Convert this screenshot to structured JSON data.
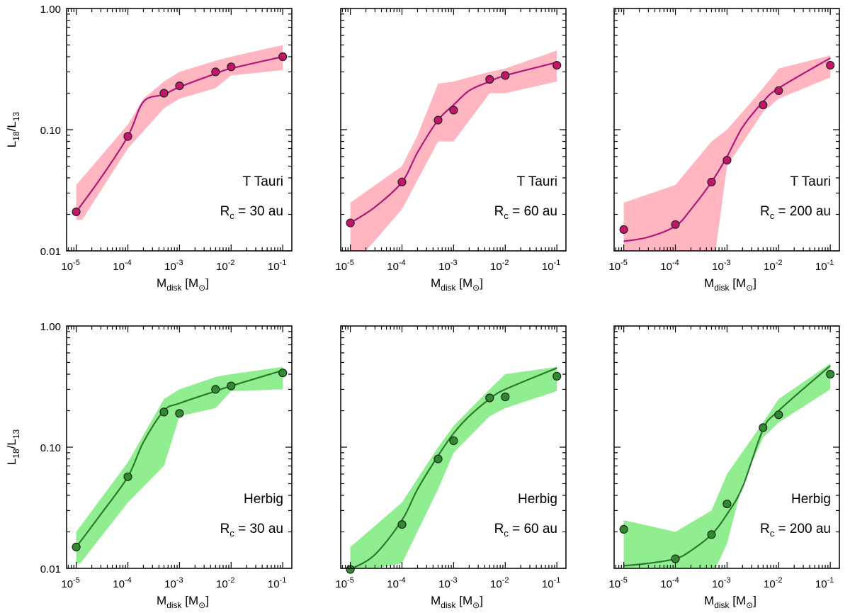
{
  "figure": {
    "ylabel": {
      "main": "L",
      "sub1": "18",
      "slash": "/L",
      "sub2": "13"
    },
    "xlabel": {
      "main": "M",
      "sub": "disk",
      "unit_open": " [M",
      "unit_sym": "⊙",
      "unit_close": "]"
    },
    "x_ticks": [
      {
        "base": "10",
        "exp": "-5"
      },
      {
        "base": "10",
        "exp": "-4"
      },
      {
        "base": "10",
        "exp": "-3"
      },
      {
        "base": "10",
        "exp": "-2"
      },
      {
        "base": "10",
        "exp": "-1"
      }
    ],
    "y_ticks": [
      "0.01",
      "0.10",
      "1.00"
    ],
    "rc_prefix": "R",
    "rc_sub": "c",
    "rc_eq": " = "
  },
  "chart_data": [
    {
      "type": "scatter",
      "panel": "top-left",
      "group": "T Tauri",
      "rc_value": "30 au",
      "xscale": "log",
      "yscale": "log",
      "xlim": [
        6.5e-06,
        0.15
      ],
      "ylim": [
        0.01,
        1.0
      ],
      "colors": {
        "marker": "#c1166c",
        "line": "#b0177a",
        "band": "#ffb6c1"
      },
      "points": {
        "x": [
          1e-05,
          0.0001,
          0.0005,
          0.001,
          0.005,
          0.01,
          0.1
        ],
        "y": [
          0.021,
          0.088,
          0.2,
          0.23,
          0.3,
          0.33,
          0.4
        ]
      },
      "fit_line": {
        "x": [
          1e-05,
          3e-05,
          0.0001,
          0.0002,
          0.0005,
          0.001,
          0.005,
          0.01,
          0.1
        ],
        "y": [
          0.021,
          0.04,
          0.088,
          0.17,
          0.195,
          0.225,
          0.29,
          0.32,
          0.4
        ]
      },
      "band_upper": {
        "x": [
          1e-05,
          0.0001,
          0.0002,
          0.0005,
          0.001,
          0.005,
          0.01,
          0.1
        ],
        "y": [
          0.035,
          0.11,
          0.18,
          0.25,
          0.3,
          0.37,
          0.4,
          0.5
        ]
      },
      "band_lower": {
        "x": [
          1e-05,
          1.3e-05,
          0.0001,
          0.0005,
          0.001,
          0.005,
          0.01,
          0.1
        ],
        "y": [
          0.018,
          0.018,
          0.07,
          0.15,
          0.18,
          0.22,
          0.28,
          0.31
        ]
      }
    },
    {
      "type": "scatter",
      "panel": "top-middle",
      "group": "T Tauri",
      "rc_value": "60 au",
      "xscale": "log",
      "yscale": "log",
      "xlim": [
        6.5e-06,
        0.15
      ],
      "ylim": [
        0.01,
        1.0
      ],
      "colors": {
        "marker": "#c1166c",
        "line": "#b0177a",
        "band": "#ffb6c1"
      },
      "points": {
        "x": [
          1e-05,
          0.0001,
          0.0005,
          0.001,
          0.005,
          0.01,
          0.1
        ],
        "y": [
          0.017,
          0.037,
          0.12,
          0.145,
          0.26,
          0.28,
          0.34
        ]
      },
      "fit_line": {
        "x": [
          1e-05,
          3e-05,
          0.0001,
          0.0002,
          0.0005,
          0.001,
          0.002,
          0.005,
          0.01,
          0.1
        ],
        "y": [
          0.017,
          0.023,
          0.037,
          0.065,
          0.12,
          0.16,
          0.21,
          0.25,
          0.28,
          0.36
        ]
      },
      "band_upper": {
        "x": [
          1e-05,
          0.0001,
          0.0002,
          0.0005,
          0.001,
          0.005,
          0.01,
          0.1
        ],
        "y": [
          0.025,
          0.05,
          0.09,
          0.24,
          0.25,
          0.3,
          0.32,
          0.45
        ]
      },
      "band_lower": {
        "x": [
          1e-05,
          1e-05,
          2e-05,
          0.0001,
          0.0005,
          0.001,
          0.005,
          0.01,
          0.1
        ],
        "y": [
          0.01,
          0.01,
          0.01,
          0.022,
          0.08,
          0.08,
          0.2,
          0.2,
          0.25
        ]
      }
    },
    {
      "type": "scatter",
      "panel": "top-right",
      "group": "T Tauri",
      "rc_value": "200 au",
      "xscale": "log",
      "yscale": "log",
      "xlim": [
        6.5e-06,
        0.15
      ],
      "ylim": [
        0.01,
        1.0
      ],
      "colors": {
        "marker": "#c1166c",
        "line": "#b0177a",
        "band": "#ffb6c1"
      },
      "points": {
        "x": [
          1e-05,
          0.0001,
          0.0005,
          0.001,
          0.005,
          0.01,
          0.1
        ],
        "y": [
          0.015,
          0.0165,
          0.037,
          0.056,
          0.16,
          0.21,
          0.34
        ]
      },
      "fit_line": {
        "x": [
          1e-05,
          3e-05,
          0.0001,
          0.0002,
          0.0005,
          0.001,
          0.002,
          0.005,
          0.01,
          0.1
        ],
        "y": [
          0.012,
          0.013,
          0.016,
          0.022,
          0.037,
          0.06,
          0.105,
          0.17,
          0.22,
          0.39
        ]
      },
      "band_upper": {
        "x": [
          1e-05,
          0.0001,
          0.0005,
          0.001,
          0.002,
          0.005,
          0.01,
          0.1
        ],
        "y": [
          0.025,
          0.035,
          0.08,
          0.1,
          0.14,
          0.22,
          0.32,
          0.41
        ]
      },
      "band_lower": {
        "x": [
          1e-05,
          1.1e-05,
          0.0004,
          0.0006,
          0.001,
          0.005,
          0.01,
          0.1
        ],
        "y": [
          0.01,
          0.01,
          0.01,
          0.01,
          0.05,
          0.14,
          0.18,
          0.27
        ]
      }
    },
    {
      "type": "scatter",
      "panel": "bottom-left",
      "group": "Herbig",
      "rc_value": "30 au",
      "xscale": "log",
      "yscale": "log",
      "xlim": [
        6.5e-06,
        0.15
      ],
      "ylim": [
        0.01,
        1.0
      ],
      "colors": {
        "marker": "#2e8b2e",
        "line": "#2a7a2a",
        "band": "#90ee90"
      },
      "points": {
        "x": [
          1e-05,
          0.0001,
          0.0005,
          0.001,
          0.005,
          0.01,
          0.1
        ],
        "y": [
          0.015,
          0.057,
          0.195,
          0.19,
          0.3,
          0.32,
          0.41
        ]
      },
      "fit_line": {
        "x": [
          1e-05,
          3e-05,
          0.0001,
          0.0002,
          0.0005,
          0.001,
          0.005,
          0.01,
          0.1
        ],
        "y": [
          0.015,
          0.028,
          0.057,
          0.11,
          0.2,
          0.23,
          0.29,
          0.32,
          0.43
        ]
      },
      "band_upper": {
        "x": [
          1e-05,
          0.0001,
          0.0005,
          0.001,
          0.005,
          0.01,
          0.1
        ],
        "y": [
          0.02,
          0.075,
          0.25,
          0.3,
          0.38,
          0.4,
          0.46
        ]
      },
      "band_lower": {
        "x": [
          1e-05,
          1.2e-05,
          0.0001,
          0.0005,
          0.001,
          0.005,
          0.01,
          0.1
        ],
        "y": [
          0.011,
          0.011,
          0.035,
          0.07,
          0.18,
          0.21,
          0.29,
          0.3
        ]
      }
    },
    {
      "type": "scatter",
      "panel": "bottom-middle",
      "group": "Herbig",
      "rc_value": "60 au",
      "xscale": "log",
      "yscale": "log",
      "xlim": [
        6.5e-06,
        0.15
      ],
      "ylim": [
        0.01,
        1.0
      ],
      "colors": {
        "marker": "#2e8b2e",
        "line": "#2a7a2a",
        "band": "#90ee90"
      },
      "points": {
        "x": [
          1e-05,
          0.0001,
          0.0005,
          0.001,
          0.005,
          0.01,
          0.1
        ],
        "y": [
          0.0098,
          0.023,
          0.08,
          0.113,
          0.255,
          0.26,
          0.385
        ]
      },
      "fit_line": {
        "x": [
          1.1e-05,
          3e-05,
          0.0001,
          0.0002,
          0.0005,
          0.001,
          0.002,
          0.005,
          0.01,
          0.1
        ],
        "y": [
          0.01,
          0.013,
          0.025,
          0.045,
          0.085,
          0.13,
          0.18,
          0.25,
          0.3,
          0.45
        ]
      },
      "band_upper": {
        "x": [
          1e-05,
          0.0001,
          0.0005,
          0.001,
          0.005,
          0.01,
          0.1
        ],
        "y": [
          0.015,
          0.035,
          0.1,
          0.15,
          0.3,
          0.4,
          0.46
        ]
      },
      "band_lower": {
        "x": [
          1e-05,
          3e-05,
          0.0001,
          0.0005,
          0.001,
          0.005,
          0.01,
          0.1
        ],
        "y": [
          0.01,
          0.01,
          0.011,
          0.045,
          0.09,
          0.18,
          0.21,
          0.29
        ]
      }
    },
    {
      "type": "scatter",
      "panel": "bottom-right",
      "group": "Herbig",
      "rc_value": "200 au",
      "xscale": "log",
      "yscale": "log",
      "xlim": [
        6.5e-06,
        0.15
      ],
      "ylim": [
        0.01,
        1.0
      ],
      "colors": {
        "marker": "#2e8b2e",
        "line": "#2a7a2a",
        "band": "#90ee90"
      },
      "points": {
        "x": [
          1e-05,
          0.0001,
          0.0005,
          0.001,
          0.005,
          0.01,
          0.1
        ],
        "y": [
          0.021,
          0.012,
          0.019,
          0.034,
          0.145,
          0.185,
          0.4
        ]
      },
      "fit_line": {
        "x": [
          1e-05,
          3e-05,
          0.0001,
          0.0002,
          0.0005,
          0.001,
          0.002,
          0.005,
          0.01,
          0.1
        ],
        "y": [
          0.0105,
          0.011,
          0.012,
          0.014,
          0.019,
          0.028,
          0.047,
          0.14,
          0.2,
          0.47
        ]
      },
      "band_upper": {
        "x": [
          1e-05,
          0.0001,
          0.0005,
          0.001,
          0.005,
          0.01,
          0.1
        ],
        "y": [
          0.025,
          0.02,
          0.03,
          0.06,
          0.16,
          0.25,
          0.49
        ]
      },
      "band_lower": {
        "x": [
          1e-05,
          0.0003,
          0.0006,
          0.001,
          0.002,
          0.005,
          0.01,
          0.1
        ],
        "y": [
          0.01,
          0.01,
          0.01,
          0.016,
          0.05,
          0.12,
          0.16,
          0.3
        ]
      }
    }
  ]
}
